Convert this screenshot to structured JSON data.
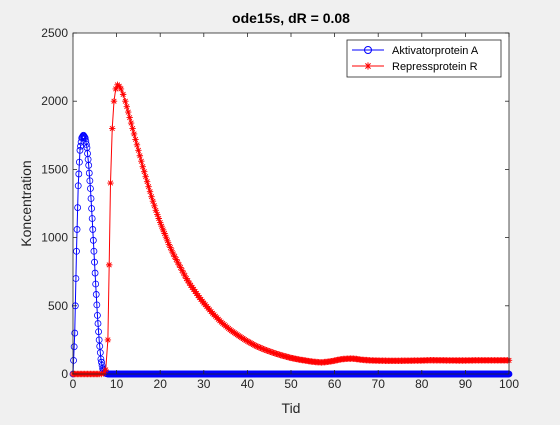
{
  "chart_data": {
    "type": "line",
    "title": "ode15s, dR = 0.08",
    "xlabel": "Tid",
    "ylabel": "Koncentration",
    "xlim": [
      0,
      100
    ],
    "ylim": [
      0,
      2500
    ],
    "xticks": [
      "0",
      "10",
      "20",
      "30",
      "40",
      "50",
      "60",
      "70",
      "80",
      "90",
      "100"
    ],
    "yticks": [
      "0",
      "500",
      "1000",
      "1500",
      "2000",
      "2500"
    ],
    "grid": false,
    "legend_position": "top-right",
    "series": [
      {
        "name": "Aktivatorprotein A",
        "color": "#0000ff",
        "marker": "circle",
        "x": [
          0,
          0.4,
          0.8,
          1.2,
          1.6,
          2.0,
          2.4,
          2.8,
          3.2,
          3.6,
          4.0,
          4.4,
          4.8,
          5.2,
          5.6,
          6.0,
          6.4,
          6.8,
          7.2,
          7.6,
          8.0,
          8.5,
          9,
          10,
          12,
          14,
          16,
          18,
          20,
          25,
          30,
          35,
          40,
          45,
          50,
          55,
          60,
          65,
          70,
          75,
          80,
          85,
          90,
          95,
          100
        ],
        "y": [
          0,
          300,
          900,
          1380,
          1640,
          1730,
          1750,
          1730,
          1660,
          1530,
          1360,
          1140,
          900,
          660,
          430,
          250,
          110,
          40,
          12,
          4,
          0,
          0,
          0,
          0,
          0,
          0,
          0,
          0,
          0,
          0,
          0,
          0,
          0,
          0,
          0,
          0,
          0,
          0,
          0,
          0,
          0,
          0,
          0,
          0,
          0
        ]
      },
      {
        "name": "Repressprotein R",
        "color": "#ff0000",
        "marker": "star",
        "x": [
          0,
          1,
          2,
          3,
          4,
          5,
          6,
          6.5,
          7,
          7.5,
          8,
          8.3,
          8.6,
          9,
          9.4,
          9.8,
          10.2,
          10.6,
          11,
          11.5,
          12,
          13,
          14,
          15,
          16,
          17,
          18,
          19,
          20,
          21,
          22,
          23,
          24,
          25,
          26,
          27,
          28,
          29,
          30,
          32,
          34,
          36,
          38,
          40,
          42,
          44,
          46,
          48,
          50,
          52,
          54,
          55,
          56,
          57,
          58,
          59,
          60,
          61,
          62,
          63,
          64,
          65,
          66,
          68,
          70,
          72,
          75,
          78,
          80,
          82,
          85,
          88,
          90,
          92,
          95,
          98,
          100
        ],
        "y": [
          0,
          0,
          0,
          0,
          0,
          0,
          0,
          0,
          5,
          30,
          250,
          800,
          1400,
          1800,
          2000,
          2090,
          2120,
          2110,
          2090,
          2050,
          2000,
          1880,
          1760,
          1640,
          1520,
          1410,
          1300,
          1200,
          1110,
          1030,
          950,
          880,
          820,
          760,
          700,
          650,
          605,
          560,
          520,
          445,
          380,
          325,
          280,
          240,
          205,
          178,
          155,
          135,
          118,
          105,
          95,
          90,
          87,
          85,
          88,
          92,
          98,
          105,
          110,
          112,
          113,
          110,
          105,
          100,
          98,
          97,
          97,
          98,
          99,
          101,
          100,
          99,
          99,
          100,
          100,
          100,
          100
        ]
      }
    ]
  }
}
